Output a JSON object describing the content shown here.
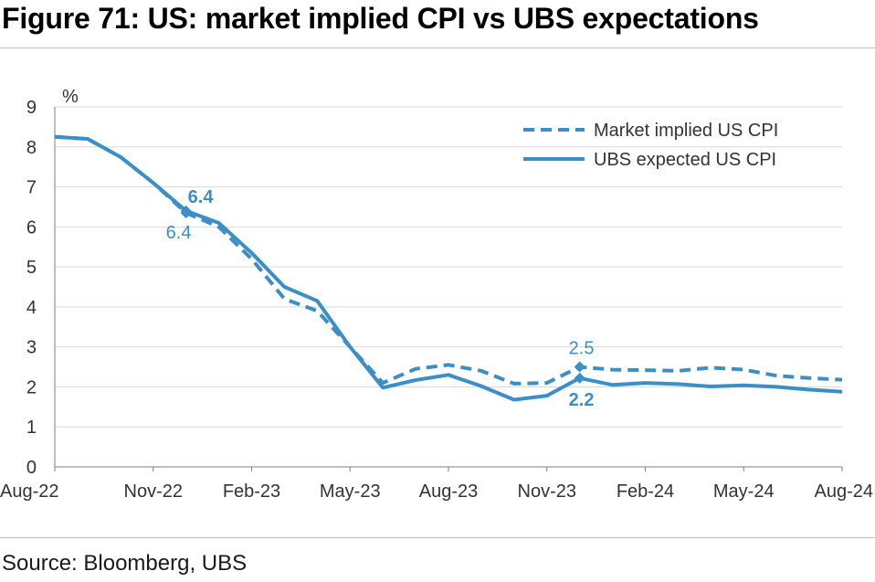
{
  "title": "Figure 71: US: market implied CPI vs UBS expectations",
  "source": "Source: Bloomberg, UBS",
  "chart_data": {
    "type": "line",
    "ylabel": "%",
    "ylim": [
      0,
      9
    ],
    "yticks": [
      0,
      1,
      2,
      3,
      4,
      5,
      6,
      7,
      8,
      9
    ],
    "xticks": [
      "Aug-22",
      "Nov-22",
      "Feb-23",
      "May-23",
      "Aug-23",
      "Nov-23",
      "Feb-24",
      "May-24",
      "Aug-24"
    ],
    "x": [
      "Aug-22",
      "Sep-22",
      "Oct-22",
      "Nov-22",
      "Dec-22",
      "Jan-23",
      "Feb-23",
      "Mar-23",
      "Apr-23",
      "May-23",
      "Jun-23",
      "Jul-23",
      "Aug-23",
      "Sep-23",
      "Oct-23",
      "Nov-23",
      "Dec-23",
      "Jan-24",
      "Feb-24",
      "Mar-24",
      "Apr-24",
      "May-24",
      "Jun-24",
      "Jul-24",
      "Aug-24"
    ],
    "grid": true,
    "legend_position": "top-right",
    "colors": {
      "series": "#3b8fc6",
      "grid": "#d9d9d9",
      "axis": "#7f7f7f"
    },
    "series": [
      {
        "name": "Market implied US CPI",
        "style": "dashed",
        "values": [
          8.25,
          8.2,
          7.75,
          7.1,
          6.35,
          6.0,
          5.2,
          4.2,
          3.9,
          3.0,
          2.1,
          2.45,
          2.55,
          2.4,
          2.08,
          2.1,
          2.5,
          2.43,
          2.42,
          2.4,
          2.48,
          2.43,
          2.28,
          2.22,
          2.18
        ]
      },
      {
        "name": "UBS expected US CPI",
        "style": "solid",
        "values": [
          8.25,
          8.2,
          7.75,
          7.1,
          6.4,
          6.1,
          5.35,
          4.5,
          4.15,
          3.0,
          1.98,
          2.17,
          2.3,
          2.02,
          1.68,
          1.78,
          2.22,
          2.05,
          2.1,
          2.07,
          2.01,
          2.04,
          2.0,
          1.93,
          1.88
        ]
      }
    ],
    "annotations": [
      {
        "text": "6.4",
        "series": 1,
        "index": 4,
        "bold": true
      },
      {
        "text": "6.4",
        "series": 0,
        "index": 4,
        "bold": false
      },
      {
        "text": "2.5",
        "series": 0,
        "index": 16,
        "bold": false
      },
      {
        "text": "2.2",
        "series": 1,
        "index": 16,
        "bold": true
      }
    ]
  }
}
